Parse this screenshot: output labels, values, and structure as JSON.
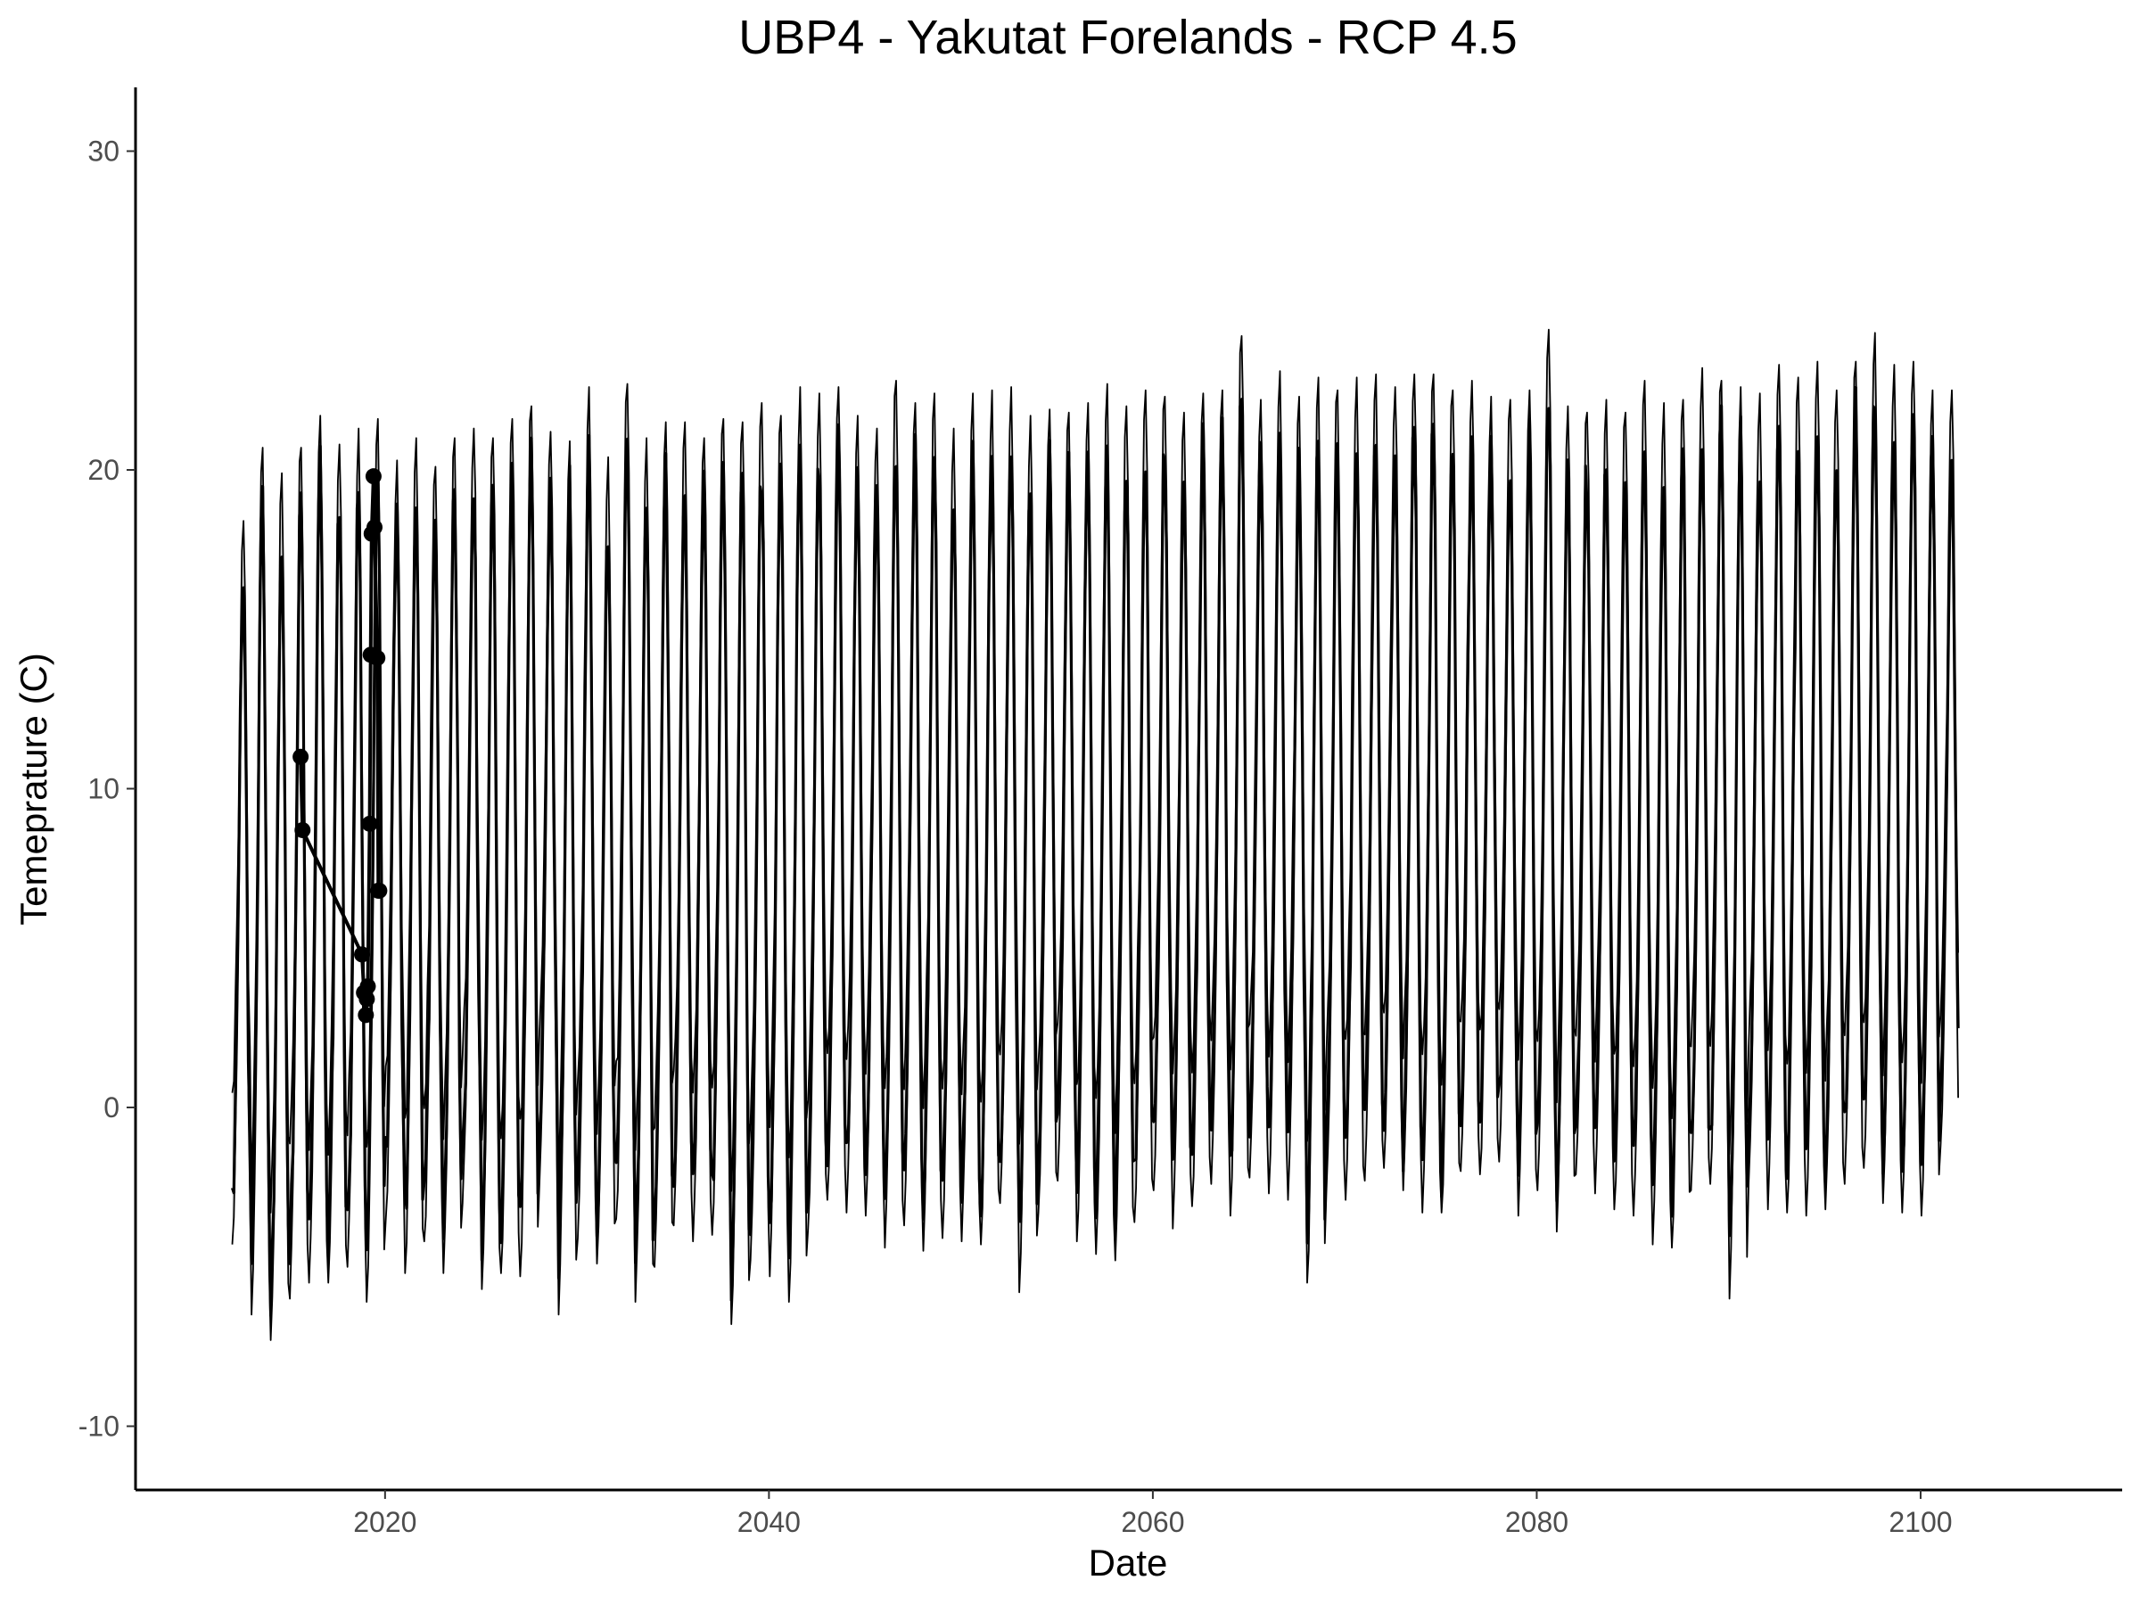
{
  "chart_data": {
    "type": "area",
    "title": "UBP4 - Yakutat Forelands - RCP 4.5",
    "xlabel": "Date",
    "ylabel": "Temeprature (C)",
    "xlim": [
      2007.0,
      2110.5
    ],
    "ylim": [
      -12.0,
      32.0
    ],
    "grid": false,
    "legend": "none",
    "x_ticks": [
      2020,
      2040,
      2060,
      2080,
      2100
    ],
    "x_tick_labels": [
      "2020",
      "2040",
      "2060",
      "2080",
      "2100"
    ],
    "y_ticks": [
      -10,
      0,
      10,
      20,
      30
    ],
    "y_tick_labels": [
      "-10",
      "0",
      "10",
      "20",
      "30"
    ],
    "series": [
      {
        "role": "monthly band (range)",
        "x_start": "2012-01",
        "x_end": "2100-12",
        "step": "monthly",
        "seasonal_cycle_mean": [
          0.5,
          1.2,
          2.6,
          4.6,
          7.5,
          10.6,
          13.1,
          13.7,
          11.9,
          7.9,
          3.8,
          1.3
        ],
        "annual_peak_upper": [
          18.4,
          20.7,
          19.9,
          20.7,
          21.7,
          20.8,
          21.3,
          21.6,
          20.3,
          21.0,
          20.1,
          21.0,
          21.3,
          21.0,
          21.6,
          22.0,
          21.2,
          20.9,
          22.6,
          20.4,
          22.7,
          21.0,
          21.5,
          21.5,
          21.0,
          21.6,
          21.5,
          22.1,
          21.7,
          22.6,
          22.4,
          22.6,
          21.7,
          21.3,
          22.8,
          22.1,
          22.4,
          21.3,
          22.4,
          22.5,
          22.6,
          21.7,
          21.9,
          21.8,
          22.1,
          22.7,
          22.0,
          22.5,
          22.3,
          21.8,
          22.4,
          22.5,
          24.2,
          22.2,
          23.1,
          22.3,
          22.9,
          22.5,
          22.9,
          23.0,
          22.6,
          23.0,
          23.0,
          22.5,
          22.8,
          22.3,
          22.2,
          22.5,
          24.4,
          22.0,
          21.8,
          22.2,
          21.8,
          22.8,
          22.1,
          22.2,
          23.2,
          22.8,
          22.6,
          22.4,
          23.3,
          22.9,
          23.4,
          22.5,
          23.4,
          24.3,
          23.3,
          23.4,
          22.5,
          22.5
        ],
        "annual_min_lower": [
          -4.3,
          -6.5,
          -7.3,
          -6.0,
          -5.5,
          -5.5,
          -5.0,
          -6.1,
          -3.5,
          -5.2,
          -4.2,
          -5.2,
          -3.0,
          -5.7,
          -5.2,
          -5.3,
          -2.4,
          -6.5,
          -4.1,
          -4.9,
          -3.5,
          -6.1,
          -5.0,
          -3.7,
          -4.2,
          -4.0,
          -6.8,
          -4.8,
          -5.3,
          -6.1,
          -3.8,
          -2.9,
          -3.3,
          -3.4,
          -4.4,
          -3.7,
          -4.5,
          -4.1,
          -4.2,
          -4.3,
          -3.0,
          -5.8,
          -3.3,
          -2.3,
          -4.2,
          -4.6,
          -4.8,
          -3.6,
          -2.6,
          -3.8,
          -3.1,
          -2.4,
          -3.4,
          -2.2,
          -2.7,
          -2.9,
          -5.5,
          -2.7,
          -2.9,
          -2.3,
          -1.9,
          -2.6,
          -3.3,
          -3.3,
          -2.0,
          -2.1,
          -1.7,
          -3.4,
          -2.6,
          -3.9,
          -2.1,
          -2.7,
          -3.2,
          -3.4,
          -4.3,
          -4.4,
          -2.6,
          -2.4,
          -6.0,
          -2.4,
          -3.2,
          -3.3,
          -3.4,
          -3.2,
          -2.4,
          -1.9,
          -3.0,
          -3.3,
          -3.4,
          -1.2
        ]
      },
      {
        "role": "observed points",
        "x": [
          2015.6,
          2015.7,
          2018.8,
          2018.9,
          2019.0,
          2019.05,
          2019.1,
          2019.2,
          2019.25,
          2019.3,
          2019.4,
          2019.45,
          2019.6,
          2019.65,
          2019.7
        ],
        "y": [
          11.0,
          8.7,
          4.8,
          3.6,
          2.9,
          3.4,
          3.8,
          8.9,
          14.2,
          18.0,
          19.8,
          18.2,
          14.1,
          6.8,
          6.8
        ]
      }
    ]
  }
}
